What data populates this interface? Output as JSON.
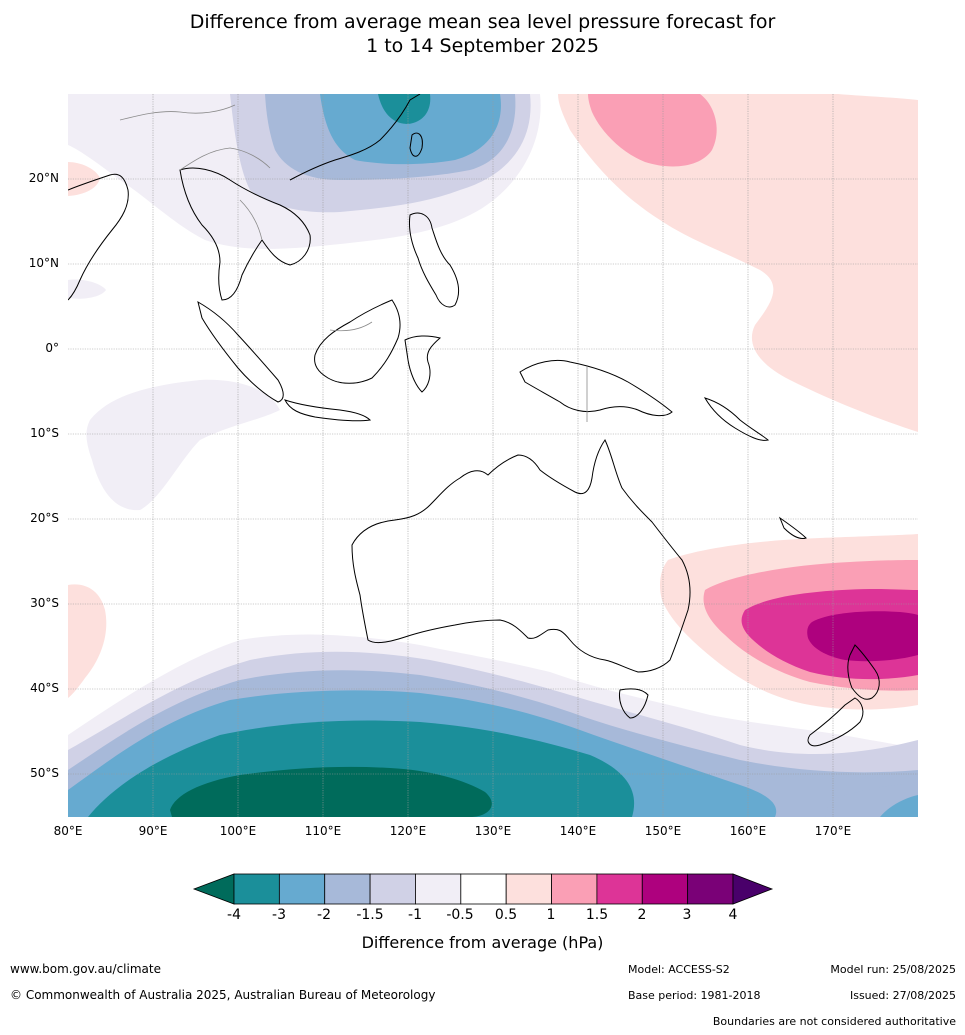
{
  "title": {
    "line1": "Difference from average mean sea level pressure forecast for",
    "line2": "1 to 14 September 2025"
  },
  "lat_labels": [
    "20°N",
    "10°N",
    "0°",
    "10°S",
    "20°S",
    "30°S",
    "40°S",
    "50°S"
  ],
  "lat_values": [
    20,
    10,
    0,
    -10,
    -20,
    -30,
    -40,
    -50
  ],
  "lon_labels": [
    "80°E",
    "90°E",
    "100°E",
    "110°E",
    "120°E",
    "130°E",
    "140°E",
    "150°E",
    "160°E",
    "170°E"
  ],
  "lon_values": [
    80,
    90,
    100,
    110,
    120,
    130,
    140,
    150,
    160,
    170
  ],
  "map_extent": {
    "lon": [
      80,
      180
    ],
    "lat": [
      -55,
      30
    ]
  },
  "colorbar": {
    "title": "Difference from average (hPa)",
    "tick_labels": [
      "-4",
      "-3",
      "-2",
      "-1.5",
      "-1",
      "-0.5",
      "0.5",
      "1",
      "1.5",
      "2",
      "3",
      "4"
    ],
    "colors": {
      "below_min": "#006b5b",
      "bins": [
        "#1b8f9a",
        "#66aad0",
        "#a7b9d9",
        "#d0d1e6",
        "#f1eef6",
        "#ffffff",
        "#fde0dd",
        "#fa9fb5",
        "#dd3497",
        "#ae017e",
        "#7a0177"
      ],
      "above_max": "#49006a"
    }
  },
  "footer": {
    "website": "www.bom.gov.au/climate",
    "copyright": "© Commonwealth of Australia 2025, Australian Bureau of Meteorology",
    "model": "Model: ACCESS-S2",
    "base_period": "Base period: 1981-2018",
    "model_run": "Model run: 25/08/2025",
    "issued": "Issued: 27/08/2025",
    "disclaimer": "Boundaries are not considered authoritative"
  }
}
